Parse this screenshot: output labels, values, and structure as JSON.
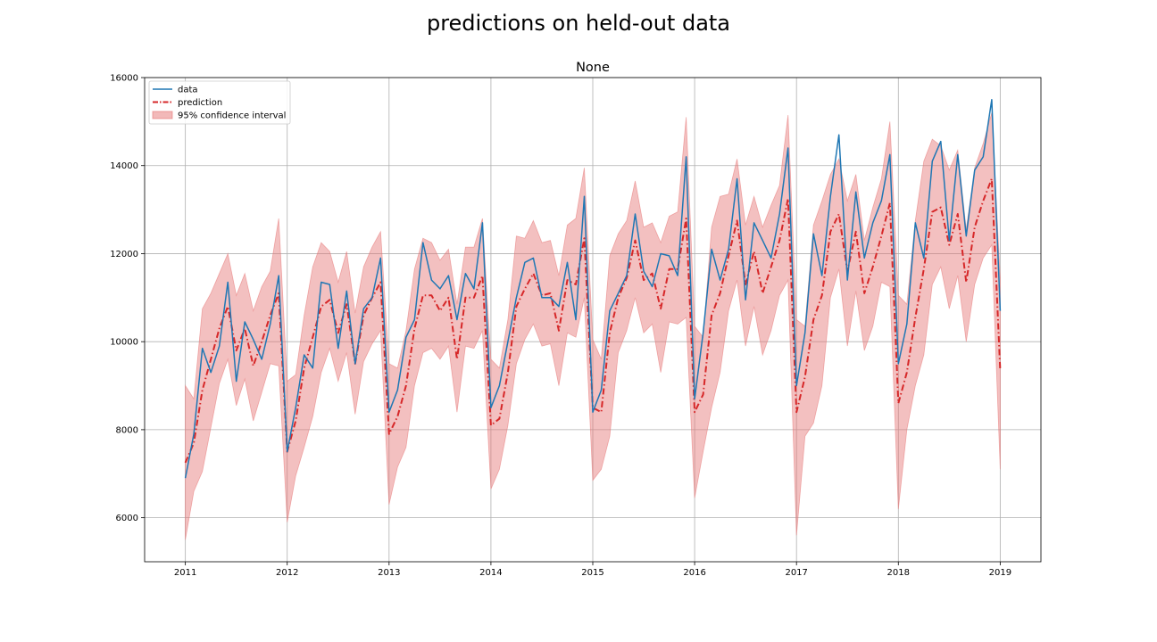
{
  "chart_data": {
    "type": "line",
    "suptitle": "predictions on held-out data",
    "title": "None",
    "xlabel": "",
    "ylabel": "",
    "xlim": [
      2010.6,
      2019.4
    ],
    "ylim": [
      5000,
      16000
    ],
    "xticks": [
      2011,
      2012,
      2013,
      2014,
      2015,
      2016,
      2017,
      2018,
      2019
    ],
    "xtick_labels": [
      "2011",
      "2012",
      "2013",
      "2014",
      "2015",
      "2016",
      "2017",
      "2018",
      "2019"
    ],
    "yticks": [
      6000,
      8000,
      10000,
      12000,
      14000,
      16000
    ],
    "ytick_labels": [
      "6000",
      "8000",
      "10000",
      "12000",
      "14000",
      "16000"
    ],
    "grid": true,
    "legend_position": "upper-left",
    "legend": {
      "data": "data",
      "prediction": "prediction",
      "ci": "95% confidence interval"
    },
    "x": [
      "2011-01",
      "2011-02",
      "2011-03",
      "2011-04",
      "2011-05",
      "2011-06",
      "2011-07",
      "2011-08",
      "2011-09",
      "2011-10",
      "2011-11",
      "2011-12",
      "2012-01",
      "2012-02",
      "2012-03",
      "2012-04",
      "2012-05",
      "2012-06",
      "2012-07",
      "2012-08",
      "2012-09",
      "2012-10",
      "2012-11",
      "2012-12",
      "2013-01",
      "2013-02",
      "2013-03",
      "2013-04",
      "2013-05",
      "2013-06",
      "2013-07",
      "2013-08",
      "2013-09",
      "2013-10",
      "2013-11",
      "2013-12",
      "2014-01",
      "2014-02",
      "2014-03",
      "2014-04",
      "2014-05",
      "2014-06",
      "2014-07",
      "2014-08",
      "2014-09",
      "2014-10",
      "2014-11",
      "2014-12",
      "2015-01",
      "2015-02",
      "2015-03",
      "2015-04",
      "2015-05",
      "2015-06",
      "2015-07",
      "2015-08",
      "2015-09",
      "2015-10",
      "2015-11",
      "2015-12",
      "2016-01",
      "2016-02",
      "2016-03",
      "2016-04",
      "2016-05",
      "2016-06",
      "2016-07",
      "2016-08",
      "2016-09",
      "2016-10",
      "2016-11",
      "2016-12",
      "2017-01",
      "2017-02",
      "2017-03",
      "2017-04",
      "2017-05",
      "2017-06",
      "2017-07",
      "2017-08",
      "2017-09",
      "2017-10",
      "2017-11",
      "2017-12",
      "2018-01",
      "2018-02",
      "2018-03",
      "2018-04",
      "2018-05",
      "2018-06",
      "2018-07",
      "2018-08",
      "2018-09",
      "2018-10",
      "2018-11",
      "2018-12",
      "2019-01"
    ],
    "series": [
      {
        "name": "data",
        "color": "#1f77b4",
        "values": [
          6900,
          7900,
          9850,
          9300,
          9900,
          11350,
          9100,
          10450,
          10050,
          9600,
          10400,
          11500,
          7500,
          8500,
          9700,
          9400,
          11350,
          11300,
          9850,
          11150,
          9500,
          10750,
          11000,
          11900,
          8400,
          8900,
          10100,
          10500,
          12250,
          11400,
          11200,
          11500,
          10500,
          11550,
          11200,
          12700,
          8500,
          9000,
          10000,
          11000,
          11800,
          11900,
          11000,
          11000,
          10800,
          11800,
          10500,
          13300,
          8400,
          8900,
          10700,
          11100,
          11500,
          12900,
          11600,
          11250,
          12000,
          11950,
          11500,
          14200,
          8700,
          10200,
          12100,
          11400,
          12100,
          13700,
          10950,
          12700,
          12300,
          11900,
          12900,
          14400,
          9000,
          10200,
          12450,
          11500,
          13300,
          14700,
          11400,
          13400,
          11900,
          12700,
          13200,
          14250,
          9500,
          10400,
          12700,
          11900,
          14100,
          14550,
          12300,
          14250,
          12400,
          13900,
          14200,
          15500,
          10700
        ]
      },
      {
        "name": "prediction",
        "color": "#d62728",
        "values": [
          7250,
          7700,
          8900,
          9600,
          10300,
          10800,
          9800,
          10300,
          9450,
          10000,
          10600,
          11100,
          7500,
          8200,
          9400,
          10100,
          10800,
          10950,
          10200,
          10850,
          9500,
          10600,
          11000,
          11350,
          7900,
          8300,
          9000,
          10300,
          11050,
          11050,
          10700,
          11000,
          9600,
          11000,
          11000,
          11500,
          8100,
          8250,
          9300,
          10800,
          11200,
          11550,
          11050,
          11100,
          10250,
          11400,
          11300,
          12350,
          8500,
          8400,
          10200,
          11000,
          11450,
          12300,
          11400,
          11550,
          10750,
          11650,
          11650,
          12800,
          8400,
          8800,
          10600,
          11100,
          11950,
          12750,
          11300,
          12050,
          11100,
          11700,
          12300,
          13250,
          8400,
          9200,
          10500,
          11050,
          12500,
          12900,
          11600,
          12500,
          11100,
          11700,
          12400,
          13150,
          8600,
          9300,
          10550,
          11650,
          12950,
          13050,
          12200,
          12900,
          11350,
          12600,
          13200,
          13700,
          9350
        ]
      }
    ],
    "ci": {
      "name": "95% confidence interval",
      "color": "#e57373",
      "upper": [
        9000,
        8700,
        10750,
        11100,
        11550,
        12000,
        11050,
        11550,
        10700,
        11250,
        11600,
        12800,
        9100,
        9250,
        10600,
        11700,
        12250,
        12050,
        11350,
        12050,
        10650,
        11700,
        12150,
        12500,
        9500,
        9400,
        10250,
        11650,
        12350,
        12250,
        11850,
        12100,
        10850,
        12150,
        12150,
        12800,
        9600,
        9400,
        10500,
        12400,
        12350,
        12750,
        12250,
        12300,
        11500,
        12650,
        12800,
        13950,
        10050,
        9600,
        11950,
        12450,
        12750,
        13650,
        12600,
        12700,
        12250,
        12850,
        12950,
        15100,
        10350,
        10100,
        12600,
        13300,
        13350,
        14150,
        12650,
        13300,
        12600,
        13100,
        13550,
        15150,
        10500,
        10350,
        12650,
        13200,
        13800,
        14150,
        13200,
        13800,
        12300,
        13050,
        13700,
        15000,
        11050,
        10850,
        12750,
        14100,
        14600,
        14450,
        13900,
        14350,
        12550,
        13950,
        14500,
        15200,
        11450
      ],
      "lower": [
        5500,
        6600,
        7050,
        8050,
        9050,
        9600,
        8550,
        9150,
        8200,
        8850,
        9500,
        9450,
        5900,
        6950,
        7600,
        8300,
        9300,
        9850,
        9100,
        9750,
        8350,
        9550,
        9950,
        10250,
        6300,
        7150,
        7600,
        9000,
        9750,
        9850,
        9600,
        9900,
        8400,
        9900,
        9850,
        10250,
        6650,
        7100,
        8100,
        9500,
        10050,
        10400,
        9900,
        9950,
        9000,
        10200,
        10100,
        11000,
        6850,
        7100,
        7850,
        9750,
        10250,
        11000,
        10200,
        10400,
        9300,
        10450,
        10400,
        10550,
        6450,
        7500,
        8500,
        9300,
        10700,
        11400,
        9900,
        10800,
        9700,
        10250,
        11050,
        11400,
        5600,
        7850,
        8150,
        9000,
        11000,
        11650,
        9900,
        11150,
        9800,
        10350,
        11350,
        11250,
        6200,
        8000,
        9000,
        9700,
        11300,
        11700,
        10750,
        11500,
        10000,
        11300,
        11900,
        12200,
        7100
      ]
    }
  }
}
